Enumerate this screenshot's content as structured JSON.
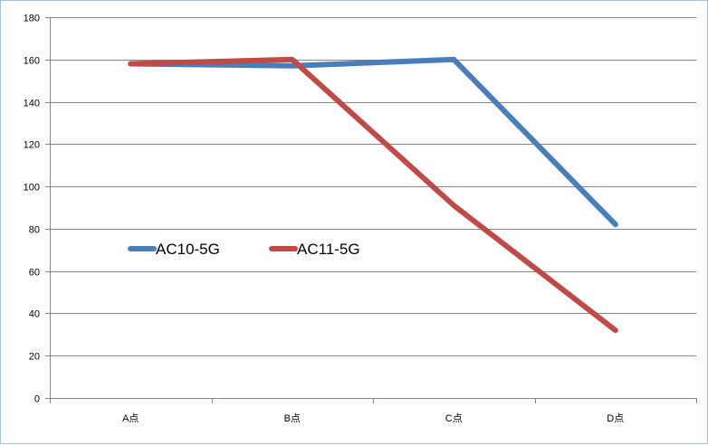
{
  "chart_data": {
    "type": "line",
    "title": "",
    "xlabel": "",
    "ylabel": "",
    "categories": [
      "A点",
      "B点",
      "C点",
      "D点"
    ],
    "ylim": [
      0,
      180
    ],
    "yticks": [
      "0",
      "20",
      "40",
      "60",
      "80",
      "100",
      "120",
      "140",
      "160",
      "180"
    ],
    "grid": "horizontal",
    "legend_position": "center-left",
    "series": [
      {
        "name": "AC10-5G",
        "values": [
          158,
          157,
          160,
          82
        ],
        "color": "#4a7ebb"
      },
      {
        "name": "AC11-5G",
        "values": [
          158,
          160,
          91,
          32
        ],
        "color": "#be4b48"
      }
    ]
  }
}
